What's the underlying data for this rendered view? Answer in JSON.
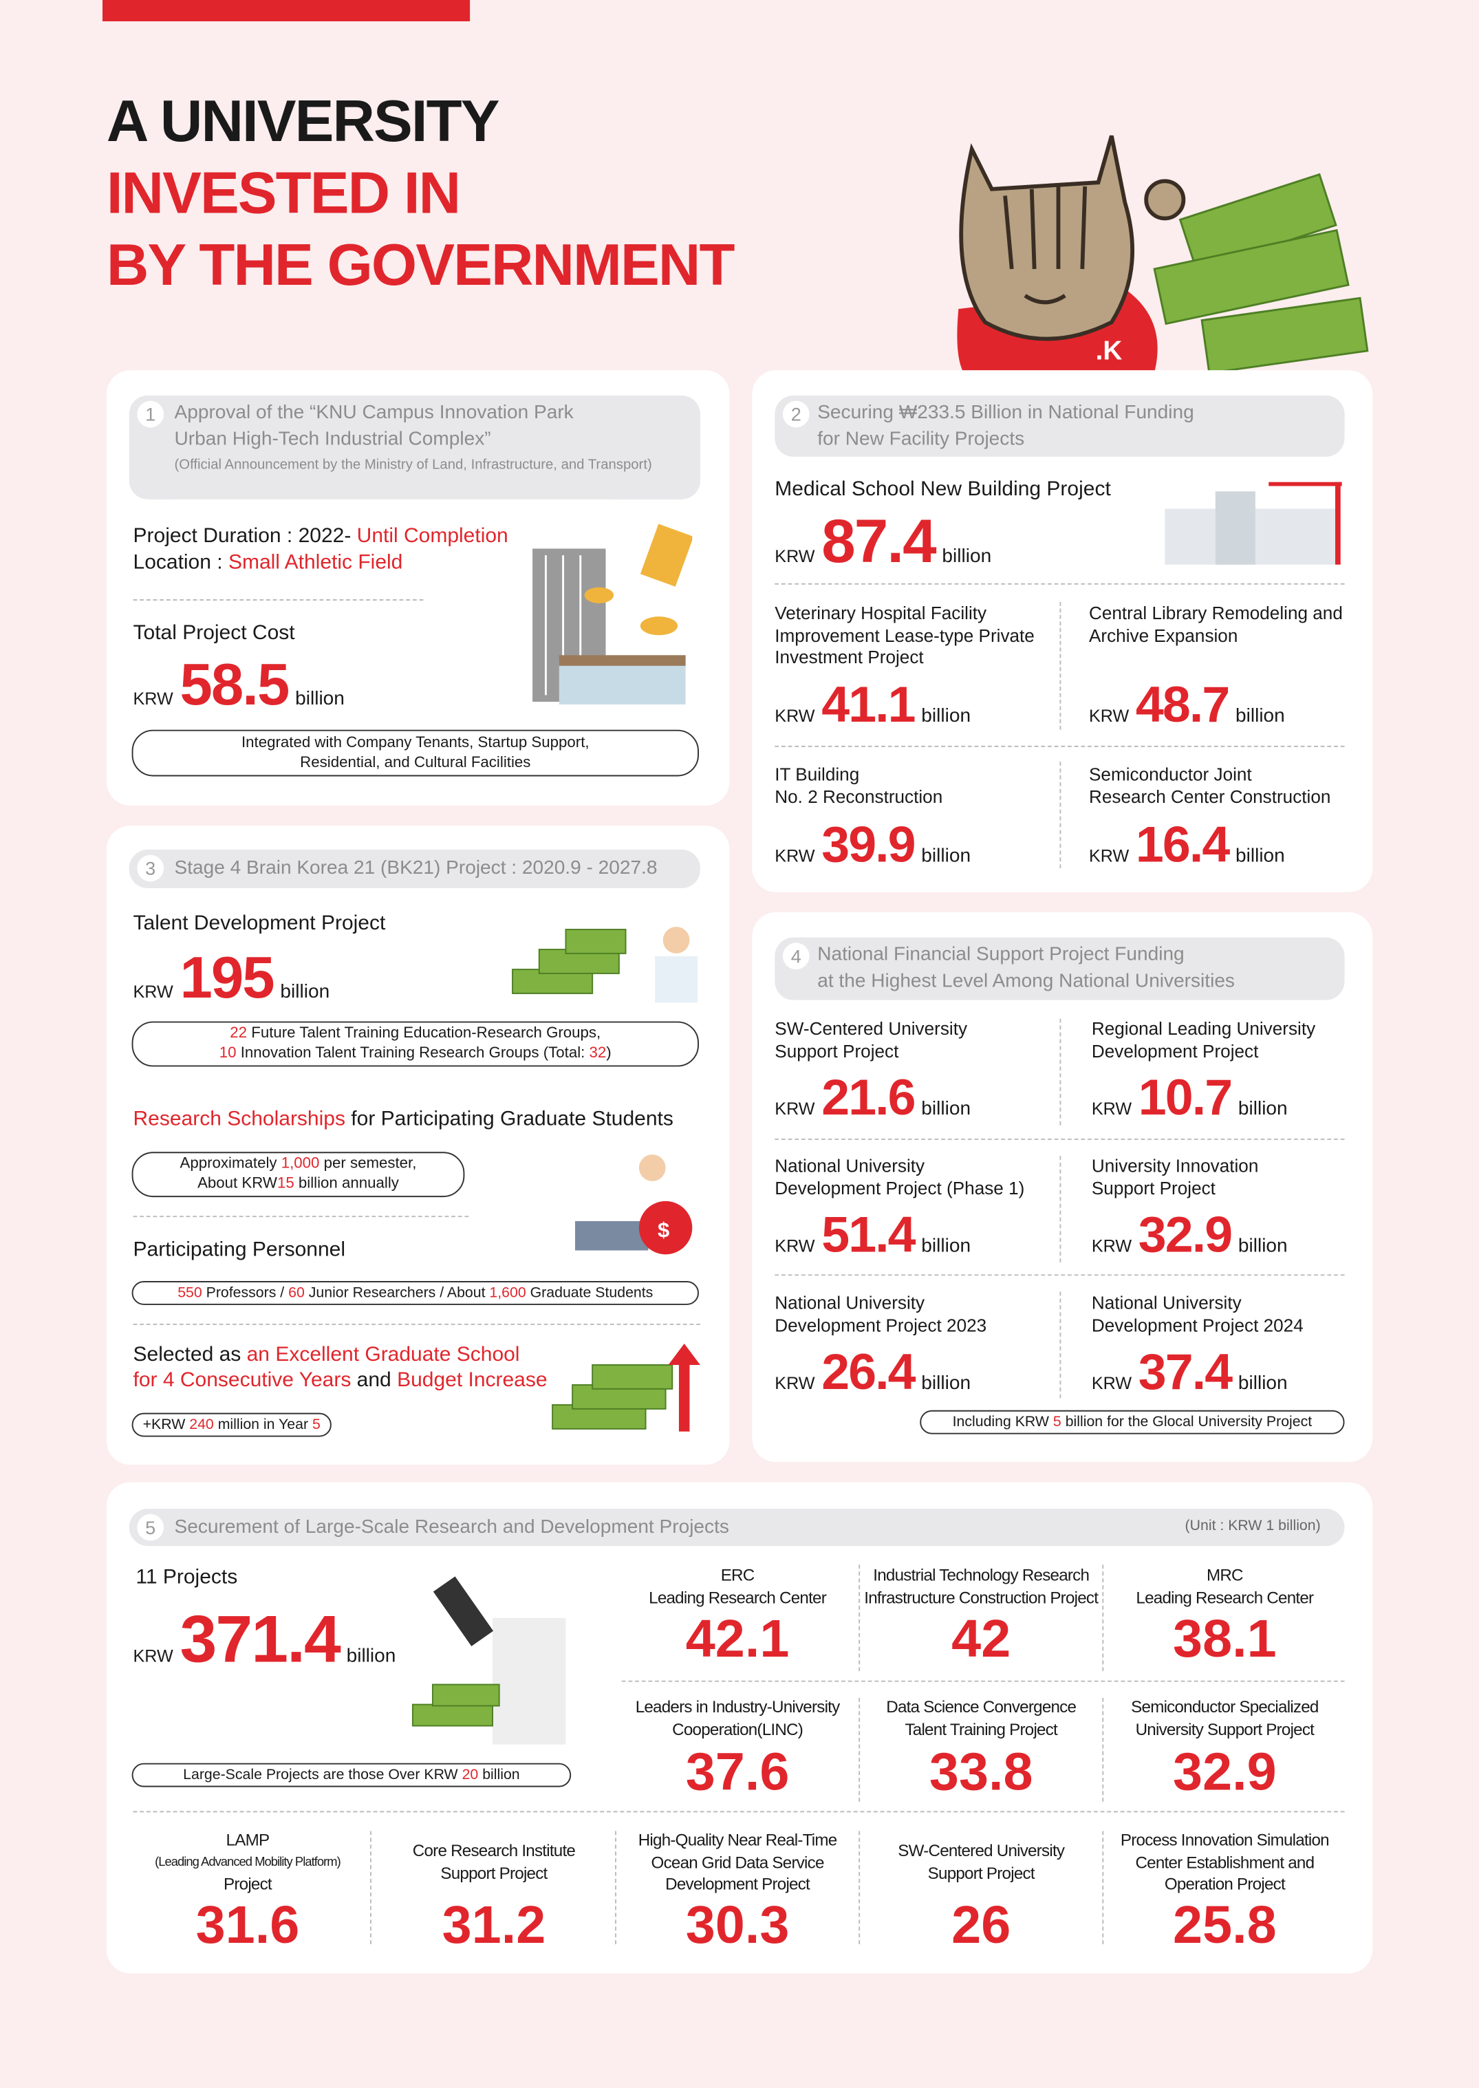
{
  "header": {
    "title_lines": [
      "A UNIVERSITY",
      "INVESTED IN",
      "BY THE GOVERNMENT"
    ]
  },
  "section1": {
    "number": "1",
    "heading": [
      "Approval of the “KNU Campus Innovation Park",
      "Urban High-Tech Industrial Complex”"
    ],
    "subheading": "(Official Announcement by the Ministry of Land, Infrastructure, and Transport)",
    "duration_label": "Project Duration : 2022- ",
    "duration_value": "Until Completion",
    "location_label": "Location : ",
    "location_value": "Small Athletic Field",
    "cost_label": "Total Project Cost",
    "cost": {
      "currency": "KRW",
      "amount": "58.5",
      "unit": "billion"
    },
    "note": [
      "Integrated with Company Tenants, Startup Support,",
      "Residential, and Cultural Facilities"
    ]
  },
  "section2": {
    "number": "2",
    "heading": [
      "Securing ₩233.5 Billion in National Funding",
      "for New Facility Projects"
    ],
    "main": {
      "name": [
        "Medical School New Building Project"
      ],
      "currency": "KRW",
      "amount": "87.4",
      "unit": "billion"
    },
    "items": [
      {
        "name": [
          "Veterinary Hospital Facility",
          "Improvement Lease-type Private",
          "Investment Project"
        ],
        "currency": "KRW",
        "amount": "41.1",
        "unit": "billion"
      },
      {
        "name": [
          "Central Library Remodeling and",
          "Archive Expansion"
        ],
        "currency": "KRW",
        "amount": "48.7",
        "unit": "billion"
      },
      {
        "name": [
          "IT Building",
          "No. 2 Reconstruction"
        ],
        "currency": "KRW",
        "amount": "39.9",
        "unit": "billion"
      },
      {
        "name": [
          "Semiconductor Joint",
          "Research Center Construction"
        ],
        "currency": "KRW",
        "amount": "16.4",
        "unit": "billion"
      }
    ]
  },
  "section3": {
    "number": "3",
    "heading": "Stage 4 Brain Korea 21 (BK21) Project : 2020.9 - 2027.8",
    "talent": {
      "name": [
        "Talent Development Project"
      ],
      "currency": "KRW",
      "amount": "195",
      "unit": "billion"
    },
    "groups_note": [
      [
        "22",
        " Future Talent Training Education-Research Groups,"
      ],
      [
        "10",
        " Innovation Talent Training Research Groups (Total: ",
        "32",
        ")"
      ]
    ],
    "scholarship_heading": [
      "Research Scholarships",
      " for Participating Graduate Students"
    ],
    "scholarship_note": [
      [
        "Approximately ",
        "1,000",
        " per semester,"
      ],
      [
        "About KRW",
        "15",
        " billion annually"
      ]
    ],
    "personnel_heading": "Participating Personnel",
    "personnel_note": [
      "550",
      " Professors / ",
      "60",
      " Junior Researchers / About ",
      "1,600",
      " Graduate Students"
    ],
    "selected": [
      [
        "Selected as ",
        "an Excellent Graduate School"
      ],
      [
        "for 4 Consecutive Years",
        " and ",
        "Budget Increase"
      ]
    ],
    "increase_note": [
      "+KRW ",
      "240",
      " million in Year ",
      "5"
    ]
  },
  "section4": {
    "number": "4",
    "heading": [
      "National Financial Support Project Funding",
      "at the Highest Level Among National Universities"
    ],
    "items": [
      {
        "name": [
          "SW-Centered University",
          "Support Project"
        ],
        "currency": "KRW",
        "amount": "21.6",
        "unit": "billion"
      },
      {
        "name": [
          "Regional Leading University",
          "Development Project"
        ],
        "currency": "KRW",
        "amount": "10.7",
        "unit": "billion"
      },
      {
        "name": [
          "National University",
          "Development Project (Phase 1)"
        ],
        "currency": "KRW",
        "amount": "51.4",
        "unit": "billion"
      },
      {
        "name": [
          "University Innovation",
          "Support Project"
        ],
        "currency": "KRW",
        "amount": "32.9",
        "unit": "billion"
      },
      {
        "name": [
          "National University",
          "Development Project 2023"
        ],
        "currency": "KRW",
        "amount": "26.4",
        "unit": "billion"
      },
      {
        "name": [
          "National University",
          "Development Project 2024"
        ],
        "currency": "KRW",
        "amount": "37.4",
        "unit": "billion"
      }
    ],
    "note": [
      "Including KRW ",
      "5",
      " billion for the Glocal University Project"
    ]
  },
  "section5": {
    "number": "5",
    "heading": "Securement of Large-Scale Research and Development Projects",
    "unit_note": "(Unit :  KRW 1 billion)",
    "total": {
      "name": [
        "11 Projects"
      ],
      "currency": "KRW",
      "amount": "371.4",
      "unit": "billion"
    },
    "note": [
      "Large-Scale Projects are those Over KRW ",
      "20",
      " billion"
    ],
    "items": [
      {
        "name": [
          "ERC",
          "Leading Research Center"
        ],
        "amount": "42.1"
      },
      {
        "name": [
          "Industrial Technology Research",
          "Infrastructure Construction Project"
        ],
        "amount": "42"
      },
      {
        "name": [
          "MRC",
          "Leading Research Center"
        ],
        "amount": "38.1"
      },
      {
        "name": [
          "Leaders in Industry-University",
          "Cooperation(LINC)"
        ],
        "amount": "37.6"
      },
      {
        "name": [
          "Data Science Convergence",
          "Talent Training Project"
        ],
        "amount": "33.8"
      },
      {
        "name": [
          "Semiconductor Specialized",
          "University Support Project"
        ],
        "amount": "32.9"
      },
      {
        "name": [
          "LAMP",
          "(Leading Advanced Mobility Platform)",
          "Project"
        ],
        "amount": "31.6"
      },
      {
        "name": [
          "Core Research Institute",
          "Support Project"
        ],
        "amount": "31.2"
      },
      {
        "name": [
          "High-Quality Near Real-Time",
          "Ocean Grid Data Service",
          "Development Project"
        ],
        "amount": "30.3"
      },
      {
        "name": [
          "SW-Centered University",
          "Support Project"
        ],
        "amount": "26"
      },
      {
        "name": [
          "Process Innovation Simulation",
          "Center Establishment and",
          "Operation Project"
        ],
        "amount": "25.8"
      }
    ]
  }
}
